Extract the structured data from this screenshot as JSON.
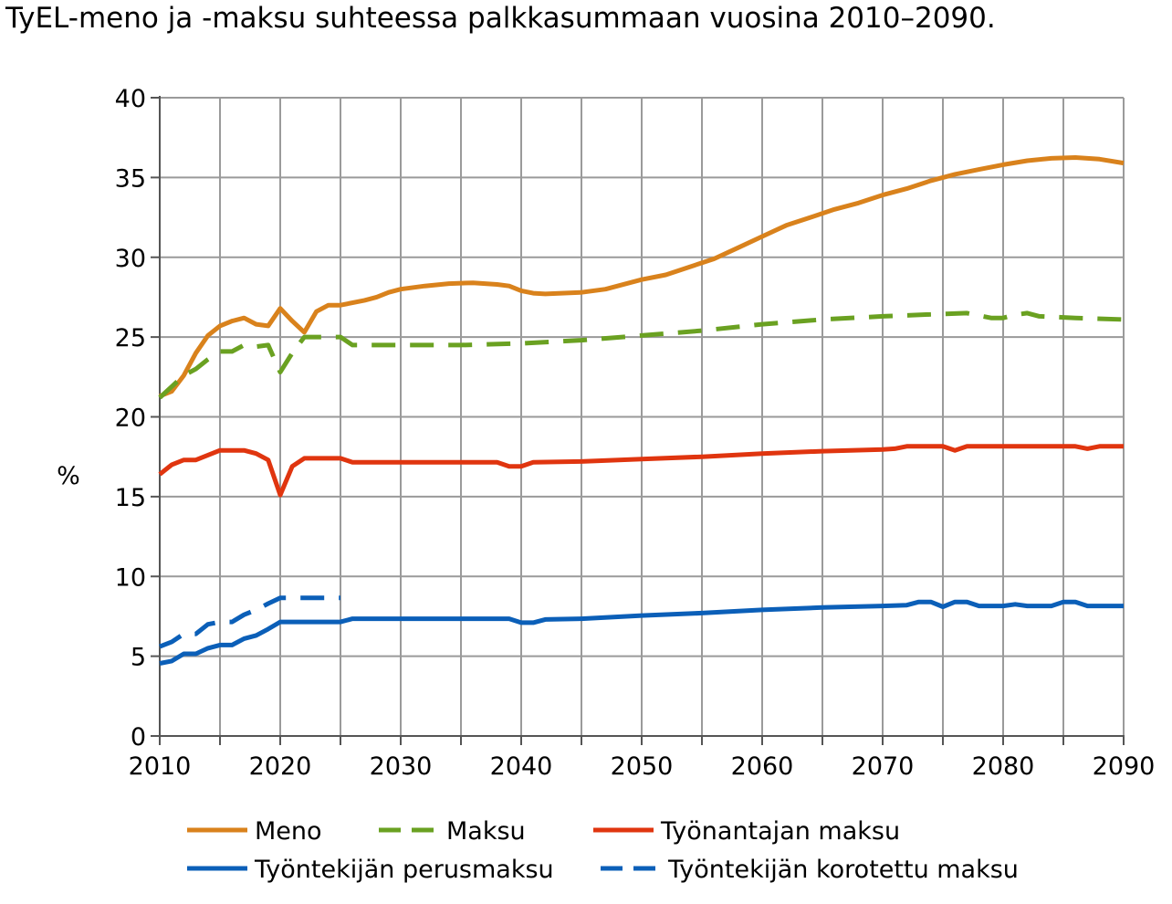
{
  "chart_data": {
    "type": "line",
    "title": "TyEL-meno ja -maksu suhteessa palkkasummaan vuosina 2010–2090.",
    "ylabel": "%",
    "xlabel": "",
    "xlim": [
      2010,
      2090
    ],
    "ylim": [
      0,
      40
    ],
    "x_ticks": [
      2010,
      2020,
      2030,
      2040,
      2050,
      2060,
      2070,
      2080,
      2090
    ],
    "y_ticks": [
      0,
      5,
      10,
      15,
      20,
      25,
      30,
      35,
      40
    ],
    "grid": true,
    "legend_position": "bottom",
    "series": [
      {
        "name": "Meno",
        "color": "#D9821C",
        "dash": "solid",
        "points": [
          [
            2010,
            21.3
          ],
          [
            2011,
            21.6
          ],
          [
            2012,
            22.6
          ],
          [
            2013,
            24.0
          ],
          [
            2014,
            25.1
          ],
          [
            2015,
            25.7
          ],
          [
            2016,
            26.0
          ],
          [
            2017,
            26.2
          ],
          [
            2018,
            25.8
          ],
          [
            2019,
            25.7
          ],
          [
            2020,
            26.8
          ],
          [
            2021,
            26.0
          ],
          [
            2022,
            25.3
          ],
          [
            2023,
            26.6
          ],
          [
            2024,
            27.0
          ],
          [
            2025,
            27.0
          ],
          [
            2027,
            27.3
          ],
          [
            2028,
            27.5
          ],
          [
            2029,
            27.8
          ],
          [
            2030,
            28.0
          ],
          [
            2032,
            28.2
          ],
          [
            2034,
            28.35
          ],
          [
            2036,
            28.4
          ],
          [
            2038,
            28.3
          ],
          [
            2039,
            28.2
          ],
          [
            2040,
            27.9
          ],
          [
            2041,
            27.75
          ],
          [
            2042,
            27.7
          ],
          [
            2045,
            27.8
          ],
          [
            2047,
            28.0
          ],
          [
            2048,
            28.2
          ],
          [
            2050,
            28.6
          ],
          [
            2052,
            28.9
          ],
          [
            2054,
            29.4
          ],
          [
            2056,
            29.9
          ],
          [
            2058,
            30.6
          ],
          [
            2060,
            31.3
          ],
          [
            2062,
            32.0
          ],
          [
            2064,
            32.5
          ],
          [
            2066,
            33.0
          ],
          [
            2068,
            33.4
          ],
          [
            2070,
            33.9
          ],
          [
            2072,
            34.3
          ],
          [
            2074,
            34.8
          ],
          [
            2076,
            35.2
          ],
          [
            2078,
            35.5
          ],
          [
            2080,
            35.8
          ],
          [
            2082,
            36.05
          ],
          [
            2084,
            36.2
          ],
          [
            2086,
            36.25
          ],
          [
            2088,
            36.15
          ],
          [
            2090,
            35.9
          ]
        ]
      },
      {
        "name": "Maksu",
        "color": "#6AA121",
        "dash": "dashed",
        "points": [
          [
            2010,
            21.2
          ],
          [
            2011,
            21.9
          ],
          [
            2012,
            22.6
          ],
          [
            2013,
            23.0
          ],
          [
            2014,
            23.6
          ],
          [
            2015,
            24.1
          ],
          [
            2016,
            24.1
          ],
          [
            2017,
            24.5
          ],
          [
            2018,
            24.4
          ],
          [
            2019,
            24.5
          ],
          [
            2020,
            22.8
          ],
          [
            2021,
            24.0
          ],
          [
            2022,
            25.0
          ],
          [
            2023,
            25.0
          ],
          [
            2025,
            25.0
          ],
          [
            2026,
            24.5
          ],
          [
            2030,
            24.5
          ],
          [
            2035,
            24.5
          ],
          [
            2040,
            24.6
          ],
          [
            2045,
            24.8
          ],
          [
            2050,
            25.1
          ],
          [
            2055,
            25.4
          ],
          [
            2060,
            25.8
          ],
          [
            2065,
            26.1
          ],
          [
            2070,
            26.3
          ],
          [
            2075,
            26.45
          ],
          [
            2077,
            26.5
          ],
          [
            2079,
            26.2
          ],
          [
            2080,
            26.2
          ],
          [
            2081,
            26.4
          ],
          [
            2082,
            26.5
          ],
          [
            2083,
            26.3
          ],
          [
            2086,
            26.2
          ],
          [
            2090,
            26.1
          ]
        ]
      },
      {
        "name": "Työnantajan maksu",
        "color": "#E0350F",
        "dash": "solid",
        "points": [
          [
            2010,
            16.4
          ],
          [
            2011,
            17.0
          ],
          [
            2012,
            17.3
          ],
          [
            2013,
            17.3
          ],
          [
            2014,
            17.6
          ],
          [
            2015,
            17.9
          ],
          [
            2016,
            17.9
          ],
          [
            2017,
            17.9
          ],
          [
            2018,
            17.7
          ],
          [
            2019,
            17.3
          ],
          [
            2020,
            15.1
          ],
          [
            2021,
            16.9
          ],
          [
            2022,
            17.4
          ],
          [
            2023,
            17.4
          ],
          [
            2025,
            17.4
          ],
          [
            2026,
            17.15
          ],
          [
            2030,
            17.15
          ],
          [
            2035,
            17.15
          ],
          [
            2038,
            17.15
          ],
          [
            2039,
            16.9
          ],
          [
            2040,
            16.9
          ],
          [
            2041,
            17.15
          ],
          [
            2045,
            17.2
          ],
          [
            2050,
            17.35
          ],
          [
            2055,
            17.5
          ],
          [
            2060,
            17.7
          ],
          [
            2065,
            17.85
          ],
          [
            2070,
            17.95
          ],
          [
            2071,
            18.0
          ],
          [
            2072,
            18.15
          ],
          [
            2075,
            18.15
          ],
          [
            2076,
            17.9
          ],
          [
            2077,
            18.15
          ],
          [
            2086,
            18.15
          ],
          [
            2087,
            18.0
          ],
          [
            2088,
            18.15
          ],
          [
            2090,
            18.15
          ]
        ]
      },
      {
        "name": "Työntekijän perusmaksu",
        "color": "#0B5FB8",
        "dash": "solid",
        "points": [
          [
            2010,
            4.55
          ],
          [
            2011,
            4.7
          ],
          [
            2012,
            5.15
          ],
          [
            2013,
            5.15
          ],
          [
            2014,
            5.5
          ],
          [
            2015,
            5.7
          ],
          [
            2016,
            5.7
          ],
          [
            2017,
            6.1
          ],
          [
            2018,
            6.3
          ],
          [
            2019,
            6.7
          ],
          [
            2020,
            7.15
          ],
          [
            2021,
            7.15
          ],
          [
            2025,
            7.15
          ],
          [
            2026,
            7.35
          ],
          [
            2035,
            7.35
          ],
          [
            2039,
            7.35
          ],
          [
            2040,
            7.1
          ],
          [
            2041,
            7.1
          ],
          [
            2042,
            7.3
          ],
          [
            2045,
            7.35
          ],
          [
            2050,
            7.55
          ],
          [
            2055,
            7.7
          ],
          [
            2060,
            7.9
          ],
          [
            2065,
            8.05
          ],
          [
            2070,
            8.15
          ],
          [
            2072,
            8.2
          ],
          [
            2073,
            8.4
          ],
          [
            2074,
            8.4
          ],
          [
            2075,
            8.1
          ],
          [
            2076,
            8.4
          ],
          [
            2077,
            8.4
          ],
          [
            2078,
            8.15
          ],
          [
            2080,
            8.15
          ],
          [
            2081,
            8.25
          ],
          [
            2082,
            8.15
          ],
          [
            2084,
            8.15
          ],
          [
            2085,
            8.4
          ],
          [
            2086,
            8.4
          ],
          [
            2087,
            8.15
          ],
          [
            2090,
            8.15
          ]
        ]
      },
      {
        "name": "Työntekijän korotettu maksu",
        "color": "#0B5FB8",
        "dash": "dashed",
        "points": [
          [
            2010,
            5.6
          ],
          [
            2011,
            5.9
          ],
          [
            2012,
            6.4
          ],
          [
            2013,
            6.4
          ],
          [
            2014,
            7.0
          ],
          [
            2015,
            7.15
          ],
          [
            2016,
            7.15
          ],
          [
            2017,
            7.6
          ],
          [
            2018,
            7.9
          ],
          [
            2019,
            8.3
          ],
          [
            2020,
            8.65
          ],
          [
            2021,
            8.65
          ],
          [
            2025,
            8.65
          ]
        ]
      }
    ]
  }
}
